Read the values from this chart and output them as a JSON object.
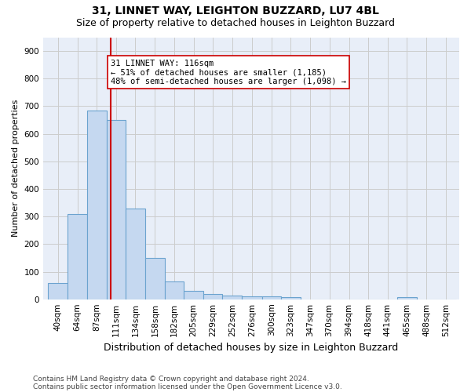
{
  "title1": "31, LINNET WAY, LEIGHTON BUZZARD, LU7 4BL",
  "title2": "Size of property relative to detached houses in Leighton Buzzard",
  "xlabel": "Distribution of detached houses by size in Leighton Buzzard",
  "ylabel": "Number of detached properties",
  "footnote1": "Contains HM Land Registry data © Crown copyright and database right 2024.",
  "footnote2": "Contains public sector information licensed under the Open Government Licence v3.0.",
  "bar_left_edges": [
    40,
    64,
    87,
    111,
    134,
    158,
    182,
    205,
    229,
    252,
    276,
    300,
    323,
    347,
    370,
    394,
    418,
    441,
    465,
    488,
    512
  ],
  "bar_heights": [
    60,
    310,
    685,
    650,
    330,
    150,
    65,
    30,
    18,
    12,
    10,
    10,
    7,
    0,
    0,
    0,
    0,
    0,
    7,
    0,
    0
  ],
  "bar_widths": [
    24,
    23,
    24,
    23,
    24,
    24,
    23,
    24,
    23,
    24,
    24,
    23,
    24,
    23,
    24,
    24,
    23,
    24,
    23,
    24,
    24
  ],
  "bar_color": "#C5D8F0",
  "bar_edgecolor": "#6BA3CF",
  "bar_linewidth": 0.8,
  "red_line_x": 116,
  "red_line_color": "#CC0000",
  "annotation_text": "31 LINNET WAY: 116sqm\n← 51% of detached houses are smaller (1,185)\n48% of semi-detached houses are larger (1,098) →",
  "annotation_box_edgecolor": "#CC0000",
  "annotation_box_facecolor": "#FFFFFF",
  "ylim": [
    0,
    950
  ],
  "yticks": [
    0,
    100,
    200,
    300,
    400,
    500,
    600,
    700,
    800,
    900
  ],
  "grid_color": "#CCCCCC",
  "background_color": "#E8EEF8",
  "title1_fontsize": 10,
  "title2_fontsize": 9,
  "xlabel_fontsize": 9,
  "ylabel_fontsize": 8,
  "tick_fontsize": 7.5,
  "annotation_fontsize": 7.5,
  "footnote_fontsize": 6.5
}
